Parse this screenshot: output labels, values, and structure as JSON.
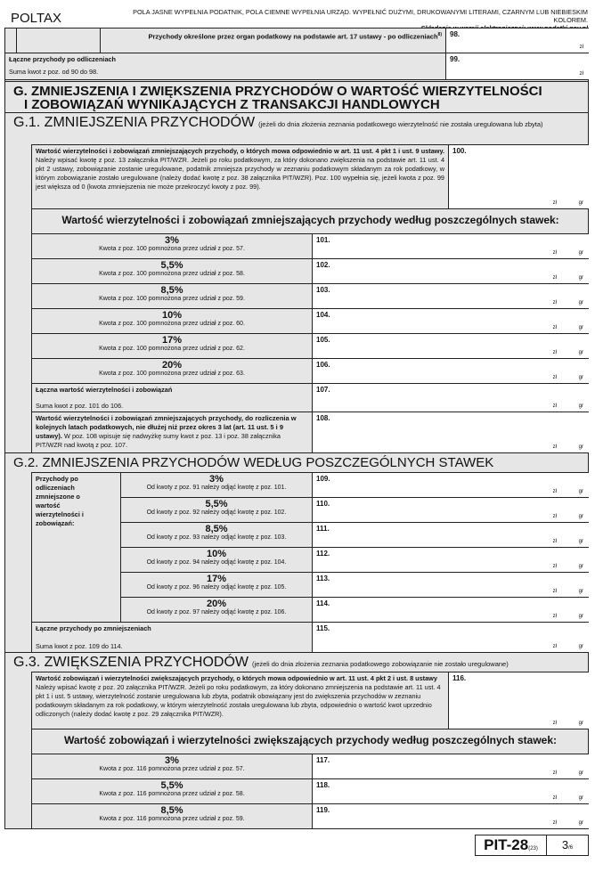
{
  "header": {
    "brand": "POLTAX",
    "instructions": "POLA JASNE WYPEŁNIA PODATNIK, POLA CIEMNE WYPEŁNIA URZĄD. WYPEŁNIĆ DUŻYMI, DRUKOWANYMI LITERAMI, CZARNYM LUB NIEBIESKIM KOLOREM.",
    "electronic": "Składanie w wersji elektronicznej: www.podatki.gov.pl"
  },
  "currency": {
    "zl": "zł",
    "gr": "gr"
  },
  "row98": {
    "label": "Przychody określone przez organ podatkowy na podstawie art. 17 ustawy - po odliczeniach",
    "footnote": "8)",
    "num": "98."
  },
  "row99": {
    "label": "Łączne przychody po odliczeniach",
    "note": "Suma kwot z poz. od 90 do 98.",
    "num": "99."
  },
  "sectionG": {
    "title_line1": "G. ZMNIEJSZENIA I ZWIĘKSZENIA PRZYCHODÓW O WARTOŚĆ WIERZYTELNOŚCI",
    "title_line2": "I ZOBOWIĄZAŃ WYNIKAJĄCYCH Z TRANSAKCJI HANDLOWYCH"
  },
  "g1": {
    "title": "G.1.  ZMNIEJSZENIA PRZYCHODÓW",
    "note": "(jeżeli do dnia złożenia zeznania podatkowego wierzytelność nie została uregulowana lub zbyta)",
    "row100": {
      "bold": "Wartość wierzytelności i zobowiązań zmniejszających przychody, o których mowa odpowiednio w art. 11 ust. 4 pkt 1 i ust. 9 ustawy.",
      "text": " Należy wpisać kwotę z poz. 13 załącznika PIT/WZR. Jeżeli po roku podatkowym, za który dokonano zwiększenia na podstawie art. 11 ust. 4 pkt 2 ustawy, zobowiązanie zostanie uregulowane, podatnik zmniejsza przychody w zeznaniu podatkowym składanym za rok podatkowy, w którym zobowiązanie zostało uregulowane (należy dodać kwotę z poz. 38 załącznika PIT/WZR). Poz. 100 wypełnia się, jeżeli kwota z poz. 99 jest większa od 0 (kwota zmniejszenia nie może przekroczyć kwoty z poz. 99).",
      "num": "100."
    },
    "subtitle": "Wartość wierzytelności i zobowiązań zmniejszających przychody według poszczególnych stawek:",
    "rates": [
      {
        "rate": "3%",
        "note": "Kwota z poz. 100 pomnożona przez udział z poz. 57.",
        "num": "101."
      },
      {
        "rate": "5,5%",
        "note": "Kwota z poz. 100 pomnożona przez udział z poz. 58.",
        "num": "102."
      },
      {
        "rate": "8,5%",
        "note": "Kwota z poz. 100 pomnożona przez udział z poz. 59.",
        "num": "103."
      },
      {
        "rate": "10%",
        "note": "Kwota z poz. 100 pomnożona przez udział z poz. 60.",
        "num": "104."
      },
      {
        "rate": "17%",
        "note": "Kwota z poz. 100 pomnożona przez udział z poz. 62.",
        "num": "105."
      },
      {
        "rate": "20%",
        "note": "Kwota z poz. 100 pomnożona przez udział z poz. 63.",
        "num": "106."
      }
    ],
    "row107": {
      "label": "Łączna wartość wierzytelności i zobowiązań",
      "note": "Suma kwot z poz. 101 do 106.",
      "num": "107."
    },
    "row108": {
      "bold": "Wartość wierzytelności i zobowiązań zmniejszających przychody, do rozliczenia w kolejnych latach podatkowych, nie dłużej niż przez okres 3 lat (art. 11 ust. 5 i 9 ustawy).",
      "text": " W poz. 108 wpisuje się nadwyżkę sumy kwot z poz. 13 i poz. 38 załącznika PIT/WZR nad kwotą z poz. 107.",
      "num": "108."
    }
  },
  "g2": {
    "title": "G.2.  ZMNIEJSZENIA PRZYCHODÓW WEDŁUG POSZCZEGÓLNYCH STAWEK",
    "side_label": "Przychody po odliczeniach zmniejszone o wartość wierzytelności i zobowiązań:",
    "rates": [
      {
        "rate": "3%",
        "note": "Od kwoty z poz. 91 należy odjąć kwotę z poz. 101.",
        "num": "109."
      },
      {
        "rate": "5,5%",
        "note": "Od kwoty z poz. 92 należy odjąć kwotę z poz. 102.",
        "num": "110."
      },
      {
        "rate": "8,5%",
        "note": "Od kwoty z poz. 93 należy odjąć kwotę z poz. 103.",
        "num": "111."
      },
      {
        "rate": "10%",
        "note": "Od kwoty z poz. 94 należy odjąć kwotę z poz. 104.",
        "num": "112."
      },
      {
        "rate": "17%",
        "note": "Od kwoty z poz. 96 należy odjąć kwotę z poz. 105.",
        "num": "113."
      },
      {
        "rate": "20%",
        "note": "Od kwoty z poz. 97 należy odjąć kwotę z poz. 106.",
        "num": "114."
      }
    ],
    "row115": {
      "label": "Łączne przychody po zmniejszeniach",
      "note": "Suma kwot z poz. 109 do 114.",
      "num": "115."
    }
  },
  "g3": {
    "title": "G.3.  ZWIĘKSZENIA PRZYCHODÓW",
    "note": "(jeżeli do dnia złożenia zeznania podatkowego zobowiązanie nie zostało uregulowane)",
    "row116": {
      "bold": "Wartość zobowiązań i wierzytelności zwiększających przychody, o których mowa odpowiednio w art. 11 ust. 4 pkt 2 i ust. 8 ustawy",
      "text": " Należy wpisać kwotę z poz. 20 załącznika PIT/WZR. Jeżeli po roku podatkowym, za który dokonano zmniejszenia na podstawie art. 11 ust. 4 pkt 1 i ust. 5 ustawy, wierzytelność zostanie uregulowana lub zbyta, podatnik obowiązany jest do zwiększenia przychodów w zeznaniu podatkowym składanym za rok podatkowy, w którym wierzytelność została uregulowana lub zbyta, odpowiednio o wartość kwot uprzednio odliczonych (należy dodać kwotę z poz. 29 załącznika PIT/WZR).",
      "num": "116."
    },
    "subtitle": "Wartość zobowiązań i wierzytelności zwiększających przychody według poszczególnych stawek:",
    "rates": [
      {
        "rate": "3%",
        "note": "Kwota z poz. 116 pomnożona przez udział z poz. 57.",
        "num": "117."
      },
      {
        "rate": "5,5%",
        "note": "Kwota z poz. 116 pomnożona przez udział z poz. 58.",
        "num": "118."
      },
      {
        "rate": "8,5%",
        "note": "Kwota z poz. 116 pomnożona przez udział z poz. 59.",
        "num": "119."
      }
    ]
  },
  "footer": {
    "form": "PIT-28",
    "version": "(23)",
    "page": "3",
    "total": "/6"
  }
}
